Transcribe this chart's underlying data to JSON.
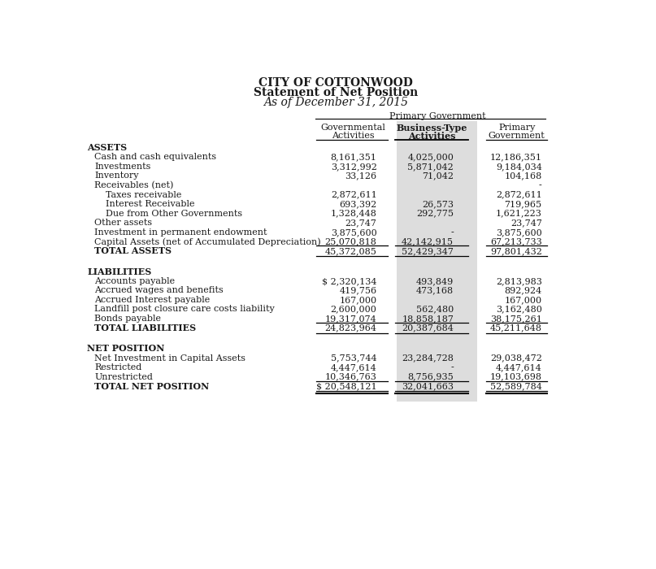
{
  "title1": "CITY OF COTTONWOOD",
  "title2": "Statement of Net Position",
  "title3": "As of December 31, 2015",
  "header_group": "Primary Government",
  "col_headers": [
    [
      "Governmental",
      "Business-Type",
      "Primary"
    ],
    [
      "Activities",
      "Activities",
      "Government"
    ]
  ],
  "sections": [
    {
      "section_label": "ASSETS",
      "rows": [
        {
          "label": "Cash and cash equivalents",
          "indent": 1,
          "col1": "8,161,351",
          "col2": "4,025,000",
          "col3": "12,186,351"
        },
        {
          "label": "Investments",
          "indent": 1,
          "col1": "3,312,992",
          "col2": "5,871,042",
          "col3": "9,184,034"
        },
        {
          "label": "Inventory",
          "indent": 1,
          "col1": "33,126",
          "col2": "71,042",
          "col3": "104,168"
        },
        {
          "label": "Receivables (net)",
          "indent": 1,
          "col1": "",
          "col2": "",
          "col3": "-"
        },
        {
          "label": "Taxes receivable",
          "indent": 2,
          "col1": "2,872,611",
          "col2": "",
          "col3": "2,872,611"
        },
        {
          "label": "Interest Receivable",
          "indent": 2,
          "col1": "693,392",
          "col2": "26,573",
          "col3": "719,965"
        },
        {
          "label": "Due from Other Governments",
          "indent": 2,
          "col1": "1,328,448",
          "col2": "292,775",
          "col3": "1,621,223"
        },
        {
          "label": "Other assets",
          "indent": 1,
          "col1": "23,747",
          "col2": "",
          "col3": "23,747"
        },
        {
          "label": "Investment in permanent endowment",
          "indent": 1,
          "col1": "3,875,600",
          "col2": "-",
          "col3": "3,875,600"
        },
        {
          "label": "Capital Assets (net of Accumulated Depreciation)",
          "indent": 1,
          "col1": "25,070,818",
          "col2": "42,142,915",
          "col3": "67,213,733"
        },
        {
          "label": "TOTAL ASSETS",
          "indent": 1,
          "col1": "45,372,085",
          "col2": "52,429,347",
          "col3": "97,801,432",
          "total": true
        }
      ]
    },
    {
      "section_label": "LIABILITIES",
      "rows": [
        {
          "label": "Accounts payable",
          "indent": 1,
          "col1": "$ 2,320,134",
          "col2": "493,849",
          "col3": "2,813,983"
        },
        {
          "label": "Accrued wages and benefits",
          "indent": 1,
          "col1": "419,756",
          "col2": "473,168",
          "col3": "892,924"
        },
        {
          "label": "Accrued Interest payable",
          "indent": 1,
          "col1": "167,000",
          "col2": "",
          "col3": "167,000"
        },
        {
          "label": "Landfill post closure care costs liability",
          "indent": 1,
          "col1": "2,600,000",
          "col2": "562,480",
          "col3": "3,162,480"
        },
        {
          "label": "Bonds payable",
          "indent": 1,
          "col1": "19,317,074",
          "col2": "18,858,187",
          "col3": "38,175,261"
        },
        {
          "label": "TOTAL LIABILITIES",
          "indent": 1,
          "col1": "24,823,964",
          "col2": "20,387,684",
          "col3": "45,211,648",
          "total": true
        }
      ]
    },
    {
      "section_label": "NET POSITION",
      "rows": [
        {
          "label": "Net Investment in Capital Assets",
          "indent": 1,
          "col1": "5,753,744",
          "col2": "23,284,728",
          "col3": "29,038,472"
        },
        {
          "label": "Restricted",
          "indent": 1,
          "col1": "4,447,614",
          "col2": "-",
          "col3": "4,447,614"
        },
        {
          "label": "Unrestricted",
          "indent": 1,
          "col1": "10,346,763",
          "col2": "8,756,935",
          "col3": "19,103,698"
        },
        {
          "label": "TOTAL NET POSITION",
          "indent": 1,
          "col1": "$ 20,548,121",
          "col2": "32,041,663",
          "col3": "52,589,784",
          "total": true,
          "double_underline": true
        }
      ]
    }
  ],
  "shade_color": "#a8a8a8",
  "shade_alpha": 0.38,
  "bg_color": "#ffffff",
  "text_color": "#1a1a1a",
  "font_size": 8.0,
  "title_font_size": 10.0
}
